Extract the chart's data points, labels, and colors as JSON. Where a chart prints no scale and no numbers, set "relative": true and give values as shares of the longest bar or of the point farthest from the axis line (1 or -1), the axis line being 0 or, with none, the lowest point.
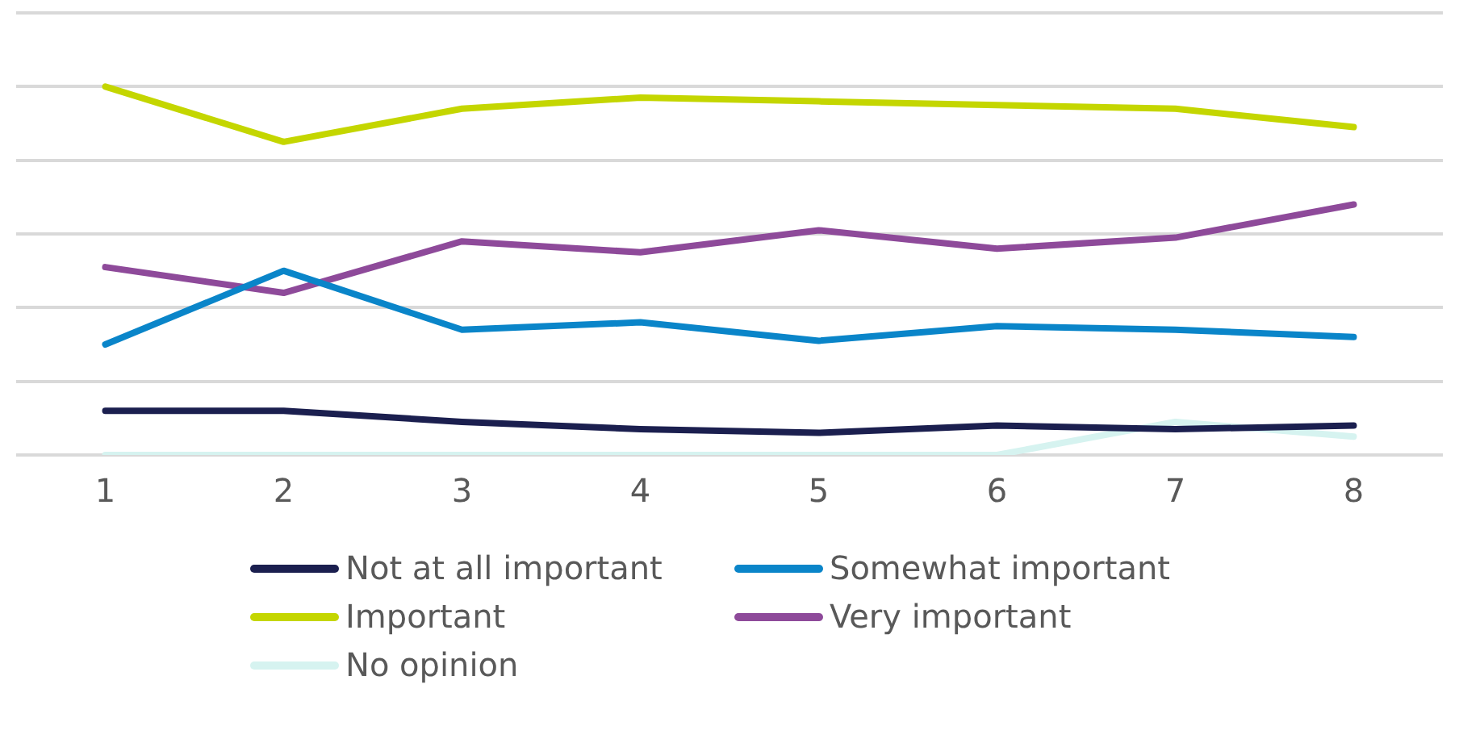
{
  "chart_data": {
    "type": "line",
    "relative": true,
    "grid": "y",
    "legend": "bottom",
    "marker": "none",
    "line_style": "solid",
    "categories": [
      "1",
      "2",
      "3",
      "4",
      "5",
      "6",
      "7",
      "8"
    ],
    "series": [
      {
        "name": "Not at all important",
        "color": "#1b1f4f",
        "values": [
          0.12,
          0.12,
          0.09,
          0.07,
          0.06,
          0.08,
          0.07,
          0.08
        ]
      },
      {
        "name": "Somewhat important",
        "color": "#0a85c9",
        "values": [
          0.3,
          0.5,
          0.34,
          0.36,
          0.31,
          0.35,
          0.34,
          0.32
        ]
      },
      {
        "name": "Important",
        "color": "#c4d600",
        "values": [
          1,
          0.85,
          0.94,
          0.97,
          0.96,
          0.95,
          0.94,
          0.89
        ]
      },
      {
        "name": "Very important",
        "color": "#8e4a9a",
        "values": [
          0.51,
          0.44,
          0.58,
          0.55,
          0.61,
          0.56,
          0.59,
          0.68
        ]
      },
      {
        "name": "No opinion",
        "color": "#d6f3f0",
        "values": [
          0,
          0,
          0,
          0,
          0,
          0,
          0.09,
          0.05
        ]
      }
    ]
  }
}
